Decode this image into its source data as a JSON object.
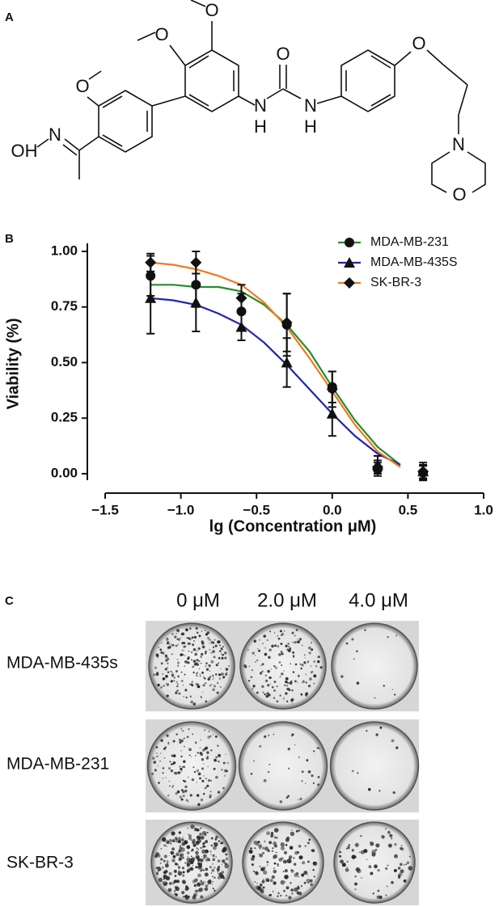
{
  "panels": {
    "a": {
      "label": "A",
      "atom_labels": [
        "O",
        "O",
        "O",
        "OH",
        "N",
        "N",
        "H",
        "O",
        "N",
        "H",
        "O",
        "N",
        "O"
      ]
    },
    "b": {
      "label": "B"
    },
    "c": {
      "label": "C",
      "columns": [
        "0 μM",
        "2.0 μM",
        "4.0 μM"
      ],
      "rows": [
        "MDA-MB-435s",
        "MDA-MB-231",
        "SK-BR-3"
      ]
    }
  },
  "chart_data": {
    "type": "scatter",
    "x_label": "lg (Concentration μM)",
    "y_label": "Viability (%)",
    "x": [
      -1.2,
      -0.9,
      -0.6,
      -0.3,
      0,
      0.3,
      0.6
    ],
    "series": [
      {
        "name": "MDA-MB-231",
        "color": "#2a8a2a",
        "marker": "circle",
        "values": [
          0.89,
          0.85,
          0.73,
          0.67,
          0.39,
          0.02,
          0.005
        ],
        "errors": [
          0.09,
          0.1,
          0.08,
          0.14,
          0.07,
          0.03,
          0.03
        ],
        "fit": {
          "x": [
            -1.2,
            -1.05,
            -0.9,
            -0.75,
            -0.6,
            -0.45,
            -0.3,
            -0.15,
            0,
            0.15,
            0.3,
            0.45
          ],
          "values": [
            0.85,
            0.85,
            0.84,
            0.84,
            0.82,
            0.76,
            0.67,
            0.55,
            0.39,
            0.24,
            0.12,
            0.04
          ]
        }
      },
      {
        "name": "MDA-MB-435S",
        "color": "#2323a8",
        "marker": "triangle",
        "values": [
          0.79,
          0.77,
          0.66,
          0.5,
          0.27,
          0.04,
          0.01
        ],
        "errors": [
          0.16,
          0.13,
          0.06,
          0.11,
          0.1,
          0.04,
          0.03
        ],
        "fit": {
          "x": [
            -1.2,
            -1.05,
            -0.9,
            -0.75,
            -0.6,
            -0.45,
            -0.3,
            -0.15,
            0,
            0.15,
            0.3,
            0.45
          ],
          "values": [
            0.79,
            0.78,
            0.76,
            0.72,
            0.67,
            0.59,
            0.49,
            0.38,
            0.27,
            0.17,
            0.09,
            0.04
          ]
        }
      },
      {
        "name": "SK-BR-3",
        "color": "#f07a1f",
        "marker": "diamond",
        "values": [
          0.95,
          0.95,
          0.79,
          0.68,
          0.38,
          0.03,
          0.01
        ],
        "errors": [
          0.04,
          0.05,
          0.06,
          0.13,
          0.08,
          0.03,
          0.04
        ],
        "fit": {
          "x": [
            -1.2,
            -1.05,
            -0.9,
            -0.75,
            -0.6,
            -0.45,
            -0.3,
            -0.15,
            0,
            0.15,
            0.3,
            0.45
          ],
          "values": [
            0.95,
            0.94,
            0.92,
            0.89,
            0.85,
            0.77,
            0.66,
            0.52,
            0.37,
            0.22,
            0.1,
            0.03
          ]
        }
      }
    ],
    "xlim": [
      -1.5,
      1.0
    ],
    "ylim": [
      0,
      1.0
    ],
    "xticks": [
      {
        "value": -1.5,
        "label": "−1.5"
      },
      {
        "value": -1.0,
        "label": "−1.0"
      },
      {
        "value": -0.5,
        "label": "−0.5"
      },
      {
        "value": 0,
        "label": "0.0"
      },
      0.5,
      {
        "value": 1.0,
        "label": "1.0"
      }
    ],
    "yticks": [
      {
        "value": 0,
        "label": "0.00"
      },
      {
        "value": 0.25,
        "label": "0.25"
      },
      {
        "value": 0.5,
        "label": "0.50"
      },
      {
        "value": 0.75,
        "label": "0.75"
      },
      {
        "value": 1.0,
        "label": "1.00"
      }
    ],
    "legend": "upper right",
    "grid": false
  }
}
